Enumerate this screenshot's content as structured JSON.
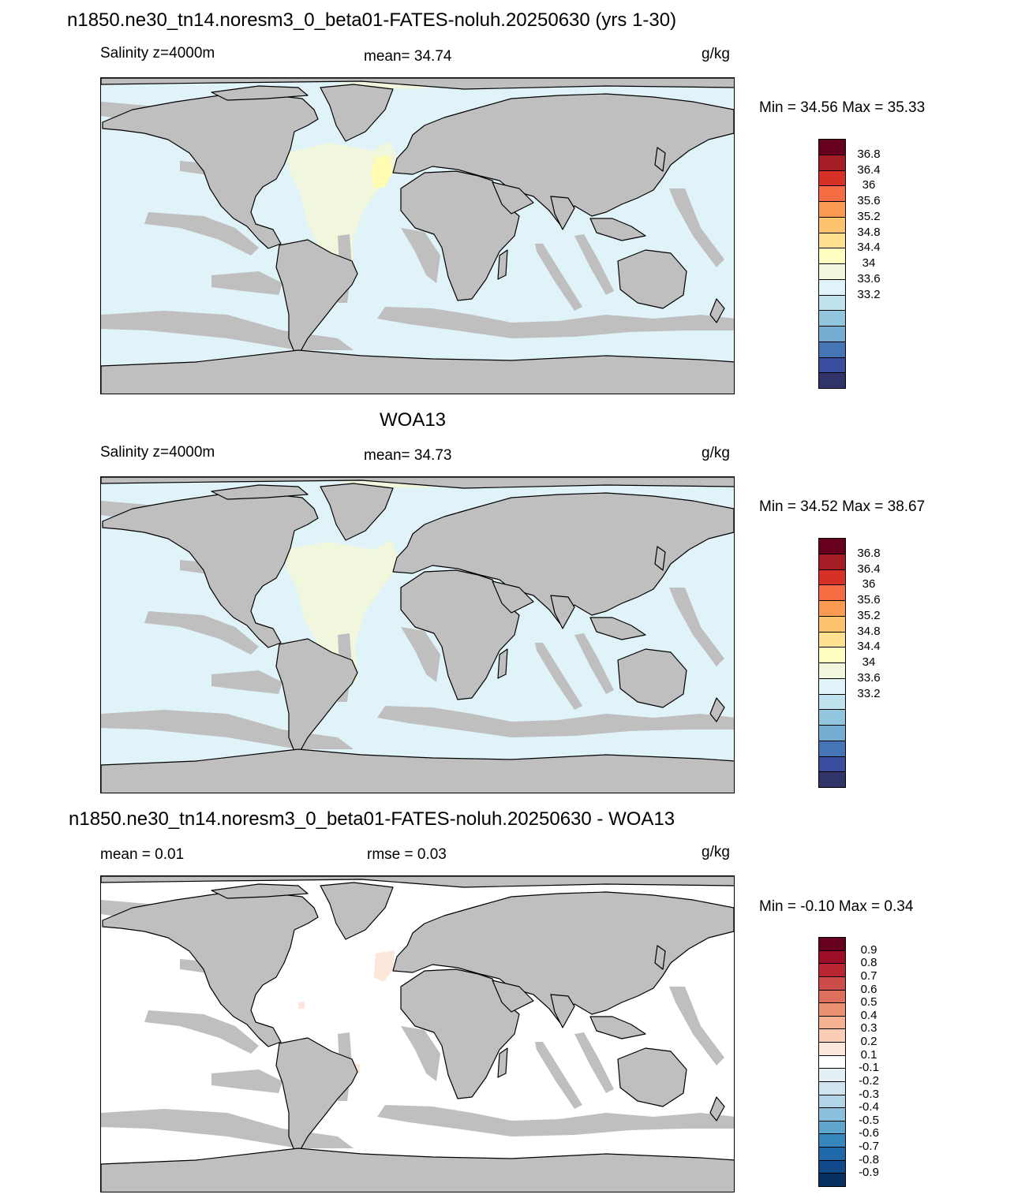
{
  "header": {
    "title": "n1850.ne30_tn14.noresm3_0_beta01-FATES-noluh.20250630 (yrs 1-30)"
  },
  "panels": [
    {
      "id": "model",
      "heading": "",
      "left_label": "Salinity z=4000m",
      "center_label": "mean=  34.74",
      "units": "g/kg",
      "minmax": "Min =  34.56 Max =  35.33",
      "field": "model"
    },
    {
      "id": "obs",
      "heading": "WOA13",
      "left_label": "Salinity z=4000m",
      "center_label": "mean=  34.73",
      "units": "g/kg",
      "minmax": "Min =  34.52 Max =  38.67",
      "field": "obs"
    },
    {
      "id": "diff",
      "heading": "n1850.ne30_tn14.noresm3_0_beta01-FATES-noluh.20250630 - WOA13",
      "left_label": "mean =   0.01",
      "center_label": "rmse =   0.03",
      "units": "g/kg",
      "minmax": "Min =  -0.10 Max =   0.34",
      "field": "diff"
    }
  ],
  "colorbars": {
    "salinity": {
      "labels": [
        "36.8",
        "36.4",
        "36",
        "35.6",
        "35.2",
        "34.8",
        "34.4",
        "34",
        "33.6",
        "33.2"
      ],
      "colors": [
        "#67001f",
        "#a51c25",
        "#d73027",
        "#f46d43",
        "#fb9a52",
        "#fdc46f",
        "#fee090",
        "#ffffbf",
        "#f0f7dc",
        "#e0f3f8",
        "#bfe2ee",
        "#92c5de",
        "#74add1",
        "#4575b4",
        "#3a4d9e",
        "#313468"
      ]
    },
    "difference": {
      "labels": [
        "0.9",
        "0.8",
        "0.7",
        "0.6",
        "0.5",
        "0.4",
        "0.3",
        "0.2",
        "0.1",
        "-0.1",
        "-0.2",
        "-0.3",
        "-0.4",
        "-0.5",
        "-0.6",
        "-0.7",
        "-0.8",
        "-0.9"
      ],
      "colors": [
        "#67001f",
        "#9b0e26",
        "#b82632",
        "#cc4c4a",
        "#dd6f5c",
        "#ec9072",
        "#f6b193",
        "#fbcdb5",
        "#fde6da",
        "#ffffff",
        "#e5f0f6",
        "#cfe4ef",
        "#b1d5e7",
        "#8bc0dc",
        "#5fa5cd",
        "#3787bf",
        "#1f68a9",
        "#11498a",
        "#053061"
      ]
    }
  },
  "map_colors": {
    "land": "#bfbfbf",
    "model_ocean": "#e0f3f8",
    "model_atlantic": "#f0f7dc",
    "model_hotspot": "#fffbb0",
    "obs_ocean": "#e0f3f8",
    "obs_atlantic": "#f0f7dc",
    "diff_ocean": "#ffffff",
    "diff_pos": "#fde6da"
  }
}
